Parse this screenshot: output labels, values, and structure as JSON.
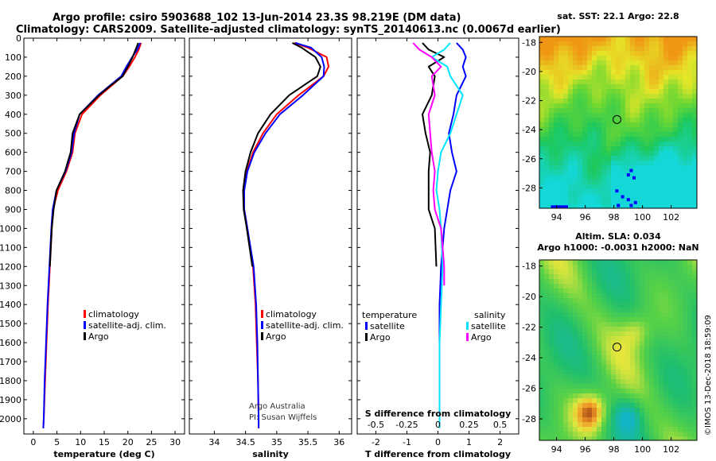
{
  "chart_data": {
    "type": "line",
    "title_line1": "Argo profile: csiro 5903688_102 13-Jun-2014 23.3S 98.219E (DM data)",
    "title_line2": "Climatology: CARS2009. Satellite-adjusted climatology: synTS_20140613.nc (0.0067d earlier)",
    "depth_ticks": [
      "0",
      "100",
      "200",
      "300",
      "400",
      "500",
      "600",
      "700",
      "800",
      "900",
      "1000",
      "1100",
      "1200",
      "1300",
      "1400",
      "1500",
      "1600",
      "1700",
      "1800",
      "1900",
      "2000"
    ],
    "depth_range": [
      0,
      2080
    ],
    "colors": {
      "climatology": "#ff0000",
      "satellite": "#0000ff",
      "argo": "#000000",
      "argo_salinity": "#ff00ff",
      "satellite_salinity": "#00e5ff"
    },
    "panels": [
      {
        "id": "temperature",
        "xlabel": "temperature (deg C)",
        "xlim": [
          -2,
          32
        ],
        "xticks": [
          0,
          5,
          10,
          15,
          20,
          25,
          30
        ],
        "xtick_labels": [
          "0",
          "5",
          "10",
          "15",
          "20",
          "25",
          "30"
        ],
        "legend": [
          "climatology",
          "satellite-adj. clim.",
          "Argo"
        ],
        "series": [
          {
            "name": "climatology",
            "color": "red",
            "depth": [
              25,
              60,
              100,
              150,
              200,
              300,
              400,
              500,
              600,
              700,
              800,
              900,
              1000,
              1200,
              1400,
              1600,
              1800,
              2000,
              2050
            ],
            "values": [
              22.8,
              22.3,
              21.5,
              20.3,
              18.9,
              14.2,
              10.3,
              8.8,
              8.3,
              7.0,
              5.2,
              4.2,
              3.9,
              3.5,
              3.1,
              2.8,
              2.5,
              2.2,
              2.1
            ]
          },
          {
            "name": "satellite-adj. clim.",
            "color": "blue",
            "depth": [
              25,
              60,
              100,
              150,
              200,
              300,
              400,
              500,
              600,
              700,
              800,
              900,
              1000,
              1200,
              1400,
              1600,
              1800,
              2000,
              2050
            ],
            "values": [
              22.6,
              22.0,
              20.9,
              19.7,
              18.6,
              13.7,
              9.8,
              8.6,
              8.1,
              6.8,
              4.9,
              4.1,
              3.8,
              3.4,
              3.0,
              2.7,
              2.4,
              2.2,
              2.1
            ]
          },
          {
            "name": "Argo",
            "color": "black",
            "depth": [
              25,
              50,
              100,
              150,
              200,
              250,
              300,
              400,
              500,
              600,
              700,
              800,
              900,
              1000,
              1200
            ],
            "values": [
              22.2,
              21.8,
              21.0,
              20.0,
              18.9,
              16.3,
              13.9,
              9.8,
              8.3,
              7.9,
              6.7,
              4.9,
              4.3,
              3.9,
              3.5
            ]
          }
        ]
      },
      {
        "id": "salinity",
        "xlabel": "salinity",
        "xlim": [
          33.6,
          36.2
        ],
        "xticks": [
          34,
          34.5,
          35,
          35.5,
          36
        ],
        "xtick_labels": [
          "34",
          "34.5",
          "35",
          "35.5",
          "36"
        ],
        "legend": [
          "climatology",
          "satellite-adj. clim.",
          "Argo"
        ],
        "annotation": [
          "Argo Australia",
          "PI: Susan Wijffels"
        ],
        "series": [
          {
            "name": "climatology",
            "color": "red",
            "depth": [
              25,
              50,
              100,
              150,
              200,
              300,
              400,
              500,
              600,
              700,
              800,
              900,
              1000,
              1200,
              1400,
              1600,
              1800,
              2000,
              2050
            ],
            "values": [
              35.28,
              35.5,
              35.8,
              35.83,
              35.75,
              35.35,
              35.0,
              34.78,
              34.62,
              34.52,
              34.47,
              34.48,
              34.53,
              34.62,
              34.66,
              34.68,
              34.7,
              34.71,
              34.71
            ]
          },
          {
            "name": "satellite-adj. clim.",
            "color": "blue",
            "depth": [
              25,
              50,
              100,
              150,
              200,
              300,
              400,
              500,
              600,
              700,
              800,
              900,
              1000,
              1200,
              1400,
              1600,
              1800,
              2000,
              2050
            ],
            "values": [
              35.3,
              35.55,
              35.72,
              35.76,
              35.75,
              35.42,
              35.05,
              34.82,
              34.64,
              34.53,
              34.48,
              34.48,
              34.53,
              34.63,
              34.67,
              34.69,
              34.7,
              34.71,
              34.71
            ]
          },
          {
            "name": "Argo",
            "color": "black",
            "depth": [
              25,
              50,
              100,
              150,
              200,
              300,
              400,
              500,
              600,
              700,
              800,
              900,
              1000,
              1200
            ],
            "values": [
              35.25,
              35.4,
              35.62,
              35.7,
              35.65,
              35.2,
              34.9,
              34.7,
              34.58,
              34.5,
              34.46,
              34.47,
              34.52,
              34.61
            ]
          }
        ]
      },
      {
        "id": "difference",
        "xlabel": "T difference from climatology",
        "top_label": "S difference from climatology",
        "xlim": [
          -2.6,
          2.6
        ],
        "xticks": [
          -2,
          -1,
          0,
          1,
          2
        ],
        "xtick_labels": [
          "-2",
          "-1",
          "0",
          "1",
          "2"
        ],
        "sticks": [
          -2,
          -1,
          0,
          1,
          2
        ],
        "stick_labels": [
          "-0.5",
          "-0.25",
          "0",
          "0.25",
          "0.5"
        ],
        "legend_temperature": [
          "temperature",
          "satellite",
          "Argo"
        ],
        "legend_salinity": [
          "salinity",
          "satellite",
          "Argo"
        ],
        "series": [
          {
            "name": "T satellite",
            "color": "blue",
            "depth": [
              25,
              60,
              100,
              150,
              200,
              300,
              400,
              500,
              600,
              700,
              800,
              900,
              1000,
              1200,
              1400,
              1600,
              1800,
              2000
            ],
            "values": [
              0.6,
              0.8,
              0.9,
              0.8,
              0.9,
              0.6,
              0.5,
              0.35,
              0.45,
              0.6,
              0.4,
              0.3,
              0.2,
              0.1,
              0.05,
              0.05,
              0.05,
              0.05
            ]
          },
          {
            "name": "T Argo",
            "color": "black",
            "depth": [
              25,
              60,
              100,
              150,
              200,
              300,
              400,
              500,
              600,
              700,
              800,
              900,
              1000,
              1200
            ],
            "values": [
              -0.5,
              -0.3,
              0.2,
              -0.3,
              -0.1,
              -0.2,
              -0.5,
              -0.4,
              -0.25,
              -0.3,
              -0.3,
              -0.3,
              -0.1,
              -0.05
            ]
          },
          {
            "name": "S satellite",
            "color": "cyan",
            "depth": [
              25,
              60,
              100,
              150,
              200,
              300,
              400,
              500,
              600,
              700,
              800,
              900,
              1000,
              1200,
              1400,
              1600,
              1800,
              2000,
              2050
            ],
            "values": [
              0.4,
              0.2,
              -0.2,
              0.3,
              0.4,
              0.8,
              0.6,
              0.4,
              0.1,
              0.0,
              -0.05,
              0.05,
              0.1,
              0.15,
              0.1,
              0.05,
              0.05,
              0.05,
              0.05
            ]
          },
          {
            "name": "S Argo",
            "color": "magenta",
            "depth": [
              25,
              60,
              100,
              150,
              200,
              300,
              400,
              500,
              600,
              700,
              800,
              900,
              1000,
              1200,
              1300
            ],
            "values": [
              -0.8,
              -0.6,
              -0.2,
              0.1,
              -0.2,
              -0.1,
              -0.3,
              -0.25,
              -0.2,
              -0.1,
              -0.15,
              -0.1,
              0.1,
              0.2,
              0.2
            ]
          }
        ]
      }
    ],
    "maps": [
      {
        "id": "sst-map",
        "title": "sat. SST: 22.1  Argo: 22.8",
        "xticks": [
          "94",
          "96",
          "98",
          "100",
          "102"
        ],
        "yticks": [
          "-18",
          "-20",
          "-22",
          "-24",
          "-26",
          "-28"
        ],
        "lon_range": [
          92.8,
          103.8
        ],
        "lat_range": [
          -29.4,
          -17.6
        ],
        "argo_position": {
          "lon": 98.219,
          "lat": -23.3
        }
      },
      {
        "id": "sla-map",
        "title_line1": "Altim. SLA: 0.034",
        "title_line2": "Argo h1000: -0.0031  h2000: NaN",
        "xticks": [
          "94",
          "96",
          "98",
          "100",
          "102"
        ],
        "yticks": [
          "-18",
          "-20",
          "-22",
          "-24",
          "-26",
          "-28"
        ],
        "lon_range": [
          92.8,
          103.8
        ],
        "lat_range": [
          -29.4,
          -17.6
        ],
        "argo_position": {
          "lon": 98.219,
          "lat": -23.3
        }
      }
    ],
    "credit": "©IMOS 13-Dec-2018 18:59:09"
  }
}
